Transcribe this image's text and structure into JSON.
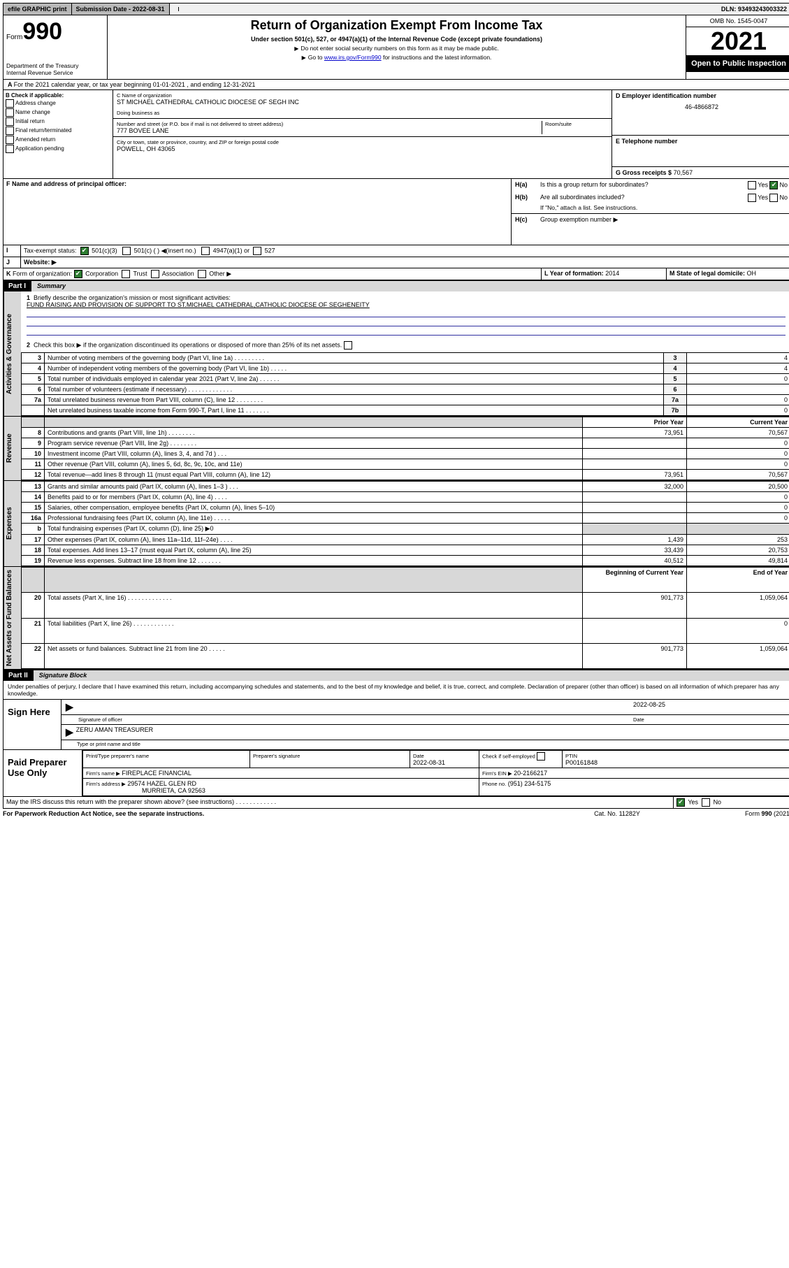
{
  "top_bar": {
    "efile": "efile GRAPHIC print",
    "submission_label": "Submission Date - 2022-08-31",
    "dln": "DLN: 93493243003322"
  },
  "header": {
    "form_word": "Form",
    "form_num": "990",
    "dept": "Department of the Treasury",
    "irs": "Internal Revenue Service",
    "title": "Return of Organization Exempt From Income Tax",
    "sub": "Under section 501(c), 527, or 4947(a)(1) of the Internal Revenue Code (except private foundations)",
    "note1": "Do not enter social security numbers on this form as it may be made public.",
    "note2_pre": "Go to ",
    "note2_link": "www.irs.gov/Form990",
    "note2_post": " for instructions and the latest information.",
    "omb": "OMB No. 1545-0047",
    "year": "2021",
    "open": "Open to Public Inspection"
  },
  "A": {
    "text": "For the 2021 calendar year, or tax year beginning 01-01-2021  , and ending 12-31-2021"
  },
  "B": {
    "label": "B Check if applicable:",
    "opts": [
      "Address change",
      "Name change",
      "Initial return",
      "Final return/terminated",
      "Amended return",
      "Application pending"
    ]
  },
  "C": {
    "name_label": "C Name of organization",
    "name": "ST MICHAEL CATHEDRAL CATHOLIC DIOCESE OF SEGH INC",
    "dba_label": "Doing business as",
    "addr_label": "Number and street (or P.O. box if mail is not delivered to street address)",
    "room_label": "Room/suite",
    "addr": "777 BOVEE LANE",
    "city_label": "City or town, state or province, country, and ZIP or foreign postal code",
    "city": "POWELL, OH  43065"
  },
  "D": {
    "label": "D Employer identification number",
    "value": "46-4866872"
  },
  "E": {
    "label": "E Telephone number",
    "value": ""
  },
  "F": {
    "label": "F  Name and address of principal officer:"
  },
  "G": {
    "label": "G Gross receipts $",
    "value": "70,567"
  },
  "H": {
    "a": "Is this a group return for subordinates?",
    "b": "Are all subordinates included?",
    "b_note": "If \"No,\" attach a list. See instructions.",
    "c": "Group exemption number ▶",
    "yes": "Yes",
    "no": "No"
  },
  "I": {
    "label": "Tax-exempt status:",
    "opts": [
      "501(c)(3)",
      "501(c) (  )",
      "(insert no.)",
      "4947(a)(1) or",
      "527"
    ]
  },
  "J": {
    "label": "Website: ▶"
  },
  "K": {
    "label": "Form of organization:",
    "opts": [
      "Corporation",
      "Trust",
      "Association",
      "Other ▶"
    ]
  },
  "L": {
    "label": "L Year of formation:",
    "value": "2014"
  },
  "M": {
    "label": "M State of legal domicile:",
    "value": "OH"
  },
  "partI": {
    "title": "Part I",
    "subtitle": "Summary",
    "line1_label": "Briefly describe the organization's mission or most significant activities:",
    "line1_text": "FUND RAISING AND PROVISION OF SUPPORT TO ST.MICHAEL CATHEDRAL,CATHOLIC DIOCESE OF SEGHENEITY",
    "line2": "Check this box ▶      if the organization discontinued its operations or disposed of more than 25% of its net assets.",
    "gov_rows": [
      {
        "n": "3",
        "t": "Number of voting members of the governing body (Part VI, line 1a)   .    .    .    .    .    .    .    .    .",
        "box": "3",
        "v": "4"
      },
      {
        "n": "4",
        "t": "Number of independent voting members of the governing body (Part VI, line 1b)  .    .    .    .    .",
        "box": "4",
        "v": "4"
      },
      {
        "n": "5",
        "t": "Total number of individuals employed in calendar year 2021 (Part V, line 2a)   .    .    .    .    .    .",
        "box": "5",
        "v": "0"
      },
      {
        "n": "6",
        "t": "Total number of volunteers (estimate if necessary)  .    .    .    .    .    .    .    .    .    .    .    .    .",
        "box": "6",
        "v": ""
      },
      {
        "n": "7a",
        "t": "Total unrelated business revenue from Part VIII, column (C), line 12   .    .    .    .    .    .    .    .",
        "box": "7a",
        "v": "0"
      },
      {
        "n": "",
        "t": "Net unrelated business taxable income from Form 990-T, Part I, line 11   .    .    .    .    .    .    .",
        "box": "7b",
        "v": "0"
      }
    ],
    "col_prior": "Prior Year",
    "col_current": "Current Year",
    "rev_rows": [
      {
        "n": "8",
        "t": "Contributions and grants (Part VIII, line 1h)  .    .    .    .    .    .    .    .",
        "p": "73,951",
        "c": "70,567"
      },
      {
        "n": "9",
        "t": "Program service revenue (Part VIII, line 2g)    .    .    .    .    .    .    .    .",
        "p": "",
        "c": "0"
      },
      {
        "n": "10",
        "t": "Investment income (Part VIII, column (A), lines 3, 4, and 7d )    .    .    .",
        "p": "",
        "c": "0"
      },
      {
        "n": "11",
        "t": "Other revenue (Part VIII, column (A), lines 5, 6d, 8c, 9c, 10c, and 11e)",
        "p": "",
        "c": "0"
      },
      {
        "n": "12",
        "t": "Total revenue—add lines 8 through 11 (must equal Part VIII, column (A), line 12)",
        "p": "73,951",
        "c": "70,567"
      }
    ],
    "exp_rows": [
      {
        "n": "13",
        "t": "Grants and similar amounts paid (Part IX, column (A), lines 1–3 )    .    .    .",
        "p": "32,000",
        "c": "20,500"
      },
      {
        "n": "14",
        "t": "Benefits paid to or for members (Part IX, column (A), line 4)  .    .    .    .",
        "p": "",
        "c": "0"
      },
      {
        "n": "15",
        "t": "Salaries, other compensation, employee benefits (Part IX, column (A), lines 5–10)",
        "p": "",
        "c": "0"
      },
      {
        "n": "16a",
        "t": "Professional fundraising fees (Part IX, column (A), line 11e)   .    .    .    .    .",
        "p": "",
        "c": "0"
      },
      {
        "n": "b",
        "t": "Total fundraising expenses (Part IX, column (D), line 25) ▶0",
        "p": "SHADE",
        "c": "SHADE"
      },
      {
        "n": "17",
        "t": "Other expenses (Part IX, column (A), lines 11a–11d, 11f–24e)  .    .    .    .",
        "p": "1,439",
        "c": "253"
      },
      {
        "n": "18",
        "t": "Total expenses. Add lines 13–17 (must equal Part IX, column (A), line 25)",
        "p": "33,439",
        "c": "20,753"
      },
      {
        "n": "19",
        "t": "Revenue less expenses. Subtract line 18 from line 12    .    .    .    .    .    .    .",
        "p": "40,512",
        "c": "49,814"
      }
    ],
    "col_begin": "Beginning of Current Year",
    "col_end": "End of Year",
    "net_rows": [
      {
        "n": "20",
        "t": "Total assets (Part X, line 16)  .    .    .    .    .    .    .    .    .    .    .    .    .",
        "p": "901,773",
        "c": "1,059,064"
      },
      {
        "n": "21",
        "t": "Total liabilities (Part X, line 26)   .    .    .    .    .    .    .    .    .    .    .    .",
        "p": "",
        "c": "0"
      },
      {
        "n": "22",
        "t": "Net assets or fund balances. Subtract line 21 from line 20  .    .    .    .    .",
        "p": "901,773",
        "c": "1,059,064"
      }
    ],
    "vtabs": {
      "gov": "Activities & Governance",
      "rev": "Revenue",
      "exp": "Expenses",
      "net": "Net Assets or Fund Balances"
    }
  },
  "partII": {
    "title": "Part II",
    "subtitle": "Signature Block",
    "decl": "Under penalties of perjury, I declare that I have examined this return, including accompanying schedules and statements, and to the best of my knowledge and belief, it is true, correct, and complete. Declaration of preparer (other than officer) is based on all information of which preparer has any knowledge.",
    "sign_here": "Sign Here",
    "sig_officer": "Signature of officer",
    "sig_date_label": "Date",
    "sig_date": "2022-08-25",
    "sig_name": "ZERU AMAN  TREASURER",
    "sig_name_label": "Type or print name and title",
    "paid": "Paid Preparer Use Only",
    "prep_name_label": "Print/Type preparer's name",
    "prep_sig_label": "Preparer's signature",
    "prep_date_label": "Date",
    "prep_date": "2022-08-31",
    "prep_check": "Check       if self-employed",
    "ptin_label": "PTIN",
    "ptin": "P00161848",
    "firm_name_label": "Firm's name    ▶",
    "firm_name": "FIREPLACE FINANCIAL",
    "firm_ein_label": "Firm's EIN ▶",
    "firm_ein": "20-2166217",
    "firm_addr_label": "Firm's address ▶",
    "firm_addr1": "29574 HAZEL GLEN RD",
    "firm_addr2": "MURRIETA, CA  92563",
    "phone_label": "Phone no.",
    "phone": "(951) 234-5175",
    "discuss": "May the IRS discuss this return with the preparer shown above? (see instructions)    .    .    .    .    .    .    .    .    .    .    .    ."
  },
  "footer": {
    "pra": "For Paperwork Reduction Act Notice, see the separate instructions.",
    "cat": "Cat. No. 11282Y",
    "form": "Form 990 (2021)"
  }
}
